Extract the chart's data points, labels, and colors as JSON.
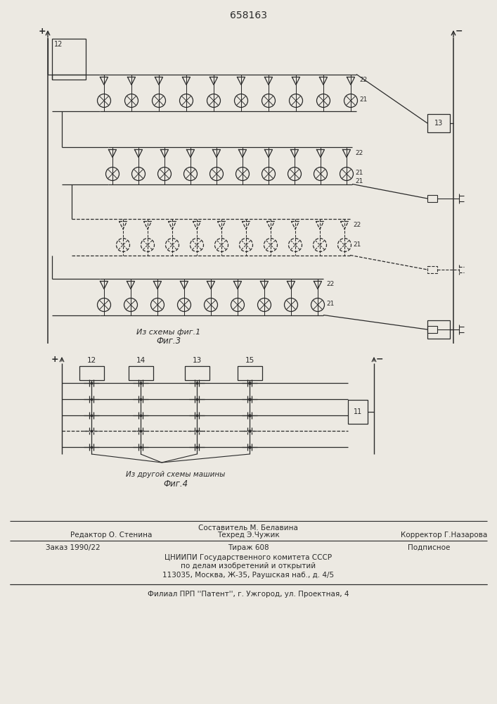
{
  "title": "658163",
  "bg_color": "#ece9e2",
  "line_color": "#2a2a2a",
  "fig3_caption": "Из схемы фиг.1",
  "fig3_label": "Фиг.3",
  "fig4_caption": "Из другой схемы машины",
  "fig4_label": "Фиг.4",
  "footer_sestavitel": "Составитель М. Белавина",
  "footer_redaktor": "Редактор О. Стенина",
  "footer_tehred": "Техред Э.Чужик",
  "footer_korrektor": "Корректор Г.Назарова",
  "footer_zakaz": "Заказ 1990/22",
  "footer_tirazh": "Тираж 608",
  "footer_podpisnoe": "Подписное",
  "footer_cniipи": "ЦНИИПИ Государственного комитета СССР",
  "footer_po_delam": "по делам изобретений и открытий",
  "footer_address": "113035, Москва, Ж-35, Раушская наб., д. 4/5",
  "footer_filial": "Филиал ПРП ''Патент'', г. Ужгород, ул. Проектная, 4"
}
